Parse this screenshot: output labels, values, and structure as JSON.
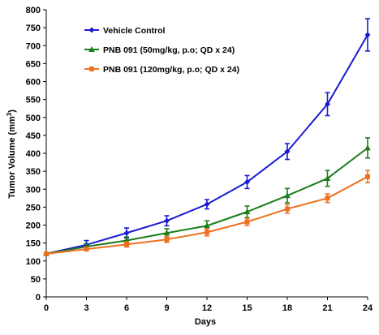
{
  "chart_data": {
    "type": "line",
    "xlabel": "Days",
    "ylabel": "Tumor Volume (mm",
    "ylabel_sup": "3",
    "ylabel_close": ")",
    "x": [
      0,
      3,
      6,
      9,
      12,
      15,
      18,
      21,
      24
    ],
    "xlim": [
      0,
      24
    ],
    "ylim": [
      0,
      800
    ],
    "x_ticks": [
      "0",
      "3",
      "6",
      "9",
      "12",
      "15",
      "18",
      "21",
      "24"
    ],
    "y_ticks": [
      "0",
      "50",
      "100",
      "150",
      "200",
      "250",
      "300",
      "350",
      "400",
      "450",
      "500",
      "550",
      "600",
      "650",
      "700",
      "750",
      "800"
    ],
    "grid": false,
    "legend_position": "top-left",
    "series": [
      {
        "name": "Vehicle Control",
        "color": "#1a1ad6",
        "marker": "diamond",
        "values": [
          120,
          145,
          178,
          212,
          258,
          320,
          405,
          537,
          730
        ],
        "errors": [
          0,
          12,
          14,
          14,
          13,
          18,
          22,
          32,
          45
        ]
      },
      {
        "name": "PNB 091 (50mg/kg, p.o; QD x 24)",
        "color": "#1a7d1a",
        "marker": "triangle",
        "values": [
          120,
          140,
          157,
          178,
          198,
          237,
          282,
          330,
          415
        ],
        "errors": [
          0,
          8,
          10,
          12,
          14,
          16,
          20,
          22,
          28
        ]
      },
      {
        "name": "PNB 091 (120mg/kg, p.o; QD x 24)",
        "color": "#f07020",
        "marker": "square",
        "values": [
          120,
          133,
          146,
          160,
          180,
          209,
          245,
          275,
          335
        ],
        "errors": [
          0,
          5,
          7,
          8,
          10,
          10,
          12,
          12,
          17
        ]
      }
    ]
  }
}
